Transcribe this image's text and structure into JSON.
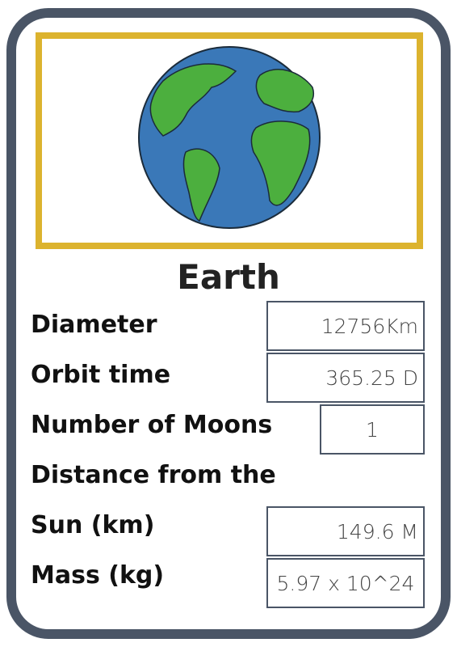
{
  "card": {
    "title": "Earth",
    "rows": [
      {
        "label": "Diameter",
        "value": "12756Km"
      },
      {
        "label": "Orbit time",
        "value": "365.25 D"
      },
      {
        "label": "Number of Moons",
        "value": "1"
      },
      {
        "label": [
          "Distance from the",
          "Sun (km)"
        ],
        "value": "149.6 M"
      },
      {
        "label": "Mass (kg)",
        "value": "5.97 x 10^24"
      }
    ]
  }
}
